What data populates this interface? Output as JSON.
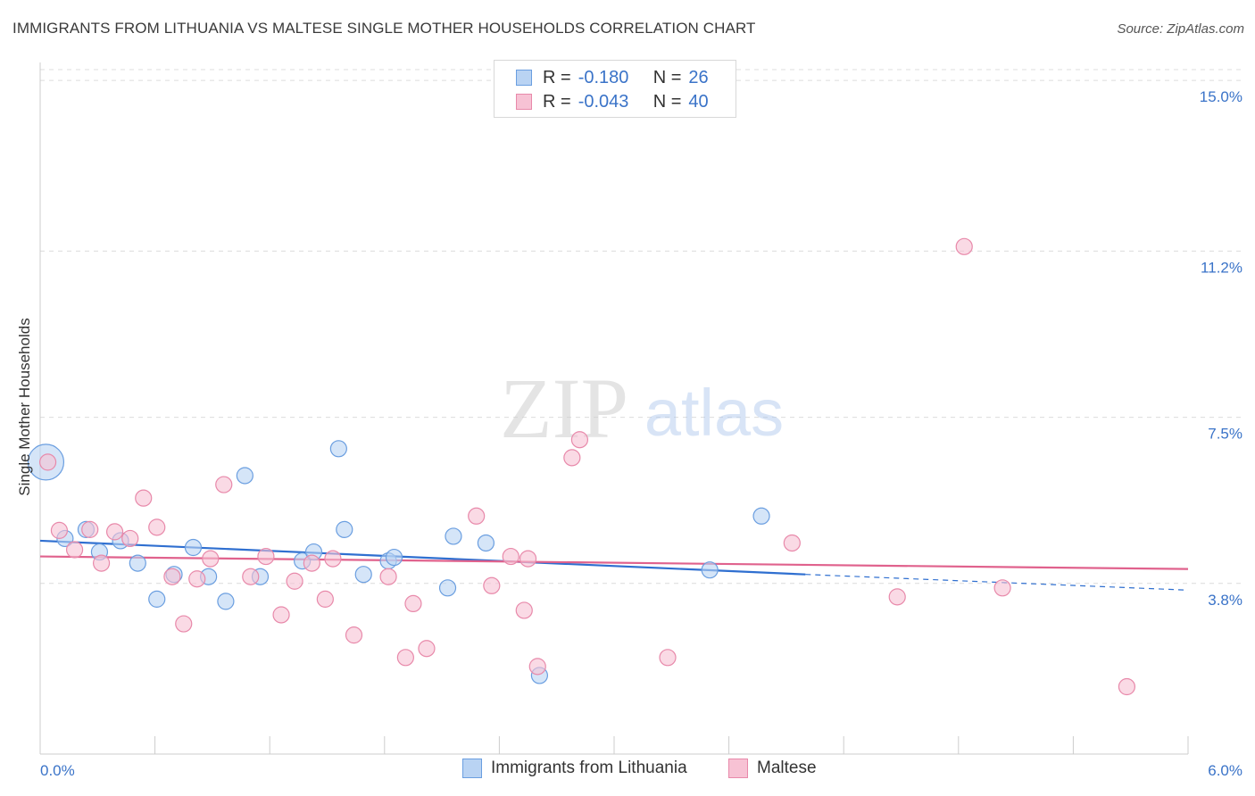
{
  "title": "IMMIGRANTS FROM LITHUANIA VS MALTESE SINGLE MOTHER HOUSEHOLDS CORRELATION CHART",
  "source": "Source: ZipAtlas.com",
  "watermark": {
    "zip": "ZIP",
    "atlas": "atlas"
  },
  "legend": {
    "rows": [
      {
        "r_label": "R =",
        "r_value": "-0.180",
        "n_label": "N =",
        "n_value": "26"
      },
      {
        "r_label": "R =",
        "r_value": "-0.043",
        "n_label": "N =",
        "n_value": "40"
      }
    ]
  },
  "colors": {
    "blue_fill": "#b9d3f3",
    "blue_stroke": "#6a9ee0",
    "blue_line": "#2f6fd0",
    "pink_fill": "#f7c2d4",
    "pink_stroke": "#e889aa",
    "pink_line": "#e0628d",
    "tick_label": "#3a73c8",
    "grid": "#dcdcdc"
  },
  "chart_data": {
    "type": "scatter",
    "title": "IMMIGRANTS FROM LITHUANIA VS MALTESE SINGLE MOTHER HOUSEHOLDS CORRELATION CHART",
    "xlabel": "",
    "ylabel": "Single Mother Households",
    "xlim": [
      0.0,
      6.0
    ],
    "ylim": [
      0.0,
      15.4
    ],
    "x_tick_labels": [
      "0.0%",
      "6.0%"
    ],
    "y_ticks": [
      3.8,
      7.5,
      11.2,
      15.0
    ],
    "y_tick_labels": [
      "3.8%",
      "7.5%",
      "11.2%",
      "15.0%"
    ],
    "grid": true,
    "legend_position": "top-center",
    "series": [
      {
        "name": "Immigrants from Lithuania",
        "color": "#b9d3f3",
        "points": [
          {
            "x": 0.03,
            "y": 6.5,
            "big": true
          },
          {
            "x": 0.13,
            "y": 4.8
          },
          {
            "x": 0.24,
            "y": 5.0
          },
          {
            "x": 0.31,
            "y": 4.5
          },
          {
            "x": 0.42,
            "y": 4.75
          },
          {
            "x": 0.51,
            "y": 4.25
          },
          {
            "x": 0.61,
            "y": 3.45
          },
          {
            "x": 0.7,
            "y": 4.0
          },
          {
            "x": 0.8,
            "y": 4.6
          },
          {
            "x": 0.88,
            "y": 3.95
          },
          {
            "x": 0.97,
            "y": 3.4
          },
          {
            "x": 1.07,
            "y": 6.2
          },
          {
            "x": 1.15,
            "y": 3.95
          },
          {
            "x": 1.37,
            "y": 4.3
          },
          {
            "x": 1.43,
            "y": 4.5
          },
          {
            "x": 1.56,
            "y": 6.8
          },
          {
            "x": 1.59,
            "y": 5.0
          },
          {
            "x": 1.69,
            "y": 4.0
          },
          {
            "x": 1.82,
            "y": 4.3
          },
          {
            "x": 1.85,
            "y": 4.38
          },
          {
            "x": 2.13,
            "y": 3.7
          },
          {
            "x": 2.16,
            "y": 4.85
          },
          {
            "x": 2.33,
            "y": 4.7
          },
          {
            "x": 2.61,
            "y": 1.75
          },
          {
            "x": 3.5,
            "y": 4.1
          },
          {
            "x": 3.77,
            "y": 5.3
          }
        ],
        "trend": {
          "x0": 0.0,
          "y0": 4.75,
          "x1": 4.0,
          "y1": 4.0,
          "dash_x1": 6.0,
          "dash_y1": 3.65
        }
      },
      {
        "name": "Maltese",
        "color": "#f7c2d4",
        "points": [
          {
            "x": 0.04,
            "y": 6.5
          },
          {
            "x": 0.1,
            "y": 4.98
          },
          {
            "x": 0.18,
            "y": 4.55
          },
          {
            "x": 0.26,
            "y": 5.0
          },
          {
            "x": 0.32,
            "y": 4.25
          },
          {
            "x": 0.39,
            "y": 4.95
          },
          {
            "x": 0.47,
            "y": 4.8
          },
          {
            "x": 0.54,
            "y": 5.7
          },
          {
            "x": 0.61,
            "y": 5.05
          },
          {
            "x": 0.69,
            "y": 3.95
          },
          {
            "x": 0.75,
            "y": 2.9
          },
          {
            "x": 0.82,
            "y": 3.9
          },
          {
            "x": 0.89,
            "y": 4.35
          },
          {
            "x": 0.96,
            "y": 6.0
          },
          {
            "x": 1.1,
            "y": 3.95
          },
          {
            "x": 1.18,
            "y": 4.4
          },
          {
            "x": 1.26,
            "y": 3.1
          },
          {
            "x": 1.33,
            "y": 3.85
          },
          {
            "x": 1.42,
            "y": 4.25
          },
          {
            "x": 1.49,
            "y": 3.45
          },
          {
            "x": 1.53,
            "y": 4.35
          },
          {
            "x": 1.64,
            "y": 2.65
          },
          {
            "x": 1.82,
            "y": 3.95
          },
          {
            "x": 1.91,
            "y": 2.15
          },
          {
            "x": 1.95,
            "y": 3.35
          },
          {
            "x": 2.02,
            "y": 2.35
          },
          {
            "x": 2.28,
            "y": 5.3
          },
          {
            "x": 2.36,
            "y": 3.75
          },
          {
            "x": 2.46,
            "y": 4.4
          },
          {
            "x": 2.53,
            "y": 3.2
          },
          {
            "x": 2.55,
            "y": 4.35
          },
          {
            "x": 2.6,
            "y": 1.95
          },
          {
            "x": 2.78,
            "y": 6.6
          },
          {
            "x": 2.82,
            "y": 7.0
          },
          {
            "x": 3.28,
            "y": 2.15
          },
          {
            "x": 3.93,
            "y": 4.7
          },
          {
            "x": 4.48,
            "y": 3.5
          },
          {
            "x": 4.83,
            "y": 11.3
          },
          {
            "x": 5.03,
            "y": 3.7
          },
          {
            "x": 5.68,
            "y": 1.5
          }
        ],
        "trend": {
          "x0": 0.0,
          "y0": 4.4,
          "x1": 6.0,
          "y1": 4.12
        }
      }
    ]
  }
}
